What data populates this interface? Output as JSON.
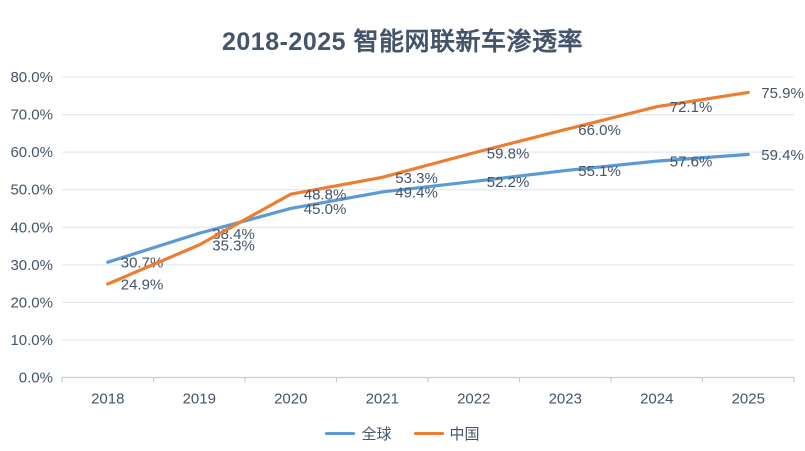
{
  "title": "2018-2025 智能网联新车渗透率",
  "colors": {
    "title_text": "#44546A",
    "axis_text": "#44546A",
    "data_label_text": "#44546A",
    "gridline": "#DCE3EC",
    "axis_line": "#C6CDD6",
    "series_global": "#5B9BD5",
    "series_china": "#ED7D31",
    "background": "#FFFFFF"
  },
  "chart_data": {
    "type": "line",
    "title": "2018-2025 智能网联新车渗透率",
    "categories": [
      "2018",
      "2019",
      "2020",
      "2021",
      "2022",
      "2023",
      "2024",
      "2025"
    ],
    "series": [
      {
        "name": "全球",
        "color": "#5B9BD5",
        "values": [
          30.7,
          38.4,
          45.0,
          49.4,
          52.2,
          55.1,
          57.6,
          59.4
        ]
      },
      {
        "name": "中国",
        "color": "#ED7D31",
        "values": [
          24.9,
          35.3,
          48.8,
          53.3,
          59.8,
          66.0,
          72.1,
          75.9
        ]
      }
    ],
    "xlabel": "",
    "ylabel": "",
    "ylim": [
      0,
      80
    ],
    "ytick_step": 10,
    "ytick_labels": [
      "0.0%",
      "10.0%",
      "20.0%",
      "30.0%",
      "40.0%",
      "50.0%",
      "60.0%",
      "70.0%",
      "80.0%"
    ],
    "grid": "horizontal",
    "legend_position": "bottom",
    "data_labels_position": "right",
    "data_label_format": "0.0%"
  },
  "legend": {
    "items": [
      {
        "label": "全球",
        "color": "#5B9BD5"
      },
      {
        "label": "中国",
        "color": "#ED7D31"
      }
    ]
  }
}
